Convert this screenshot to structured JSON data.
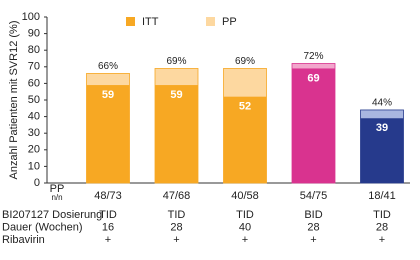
{
  "chart_data": {
    "type": "bar",
    "y_label": "Anzahl Patienten mit SVR12 (%)",
    "category_header": [
      "PP",
      "n/n"
    ],
    "categories": [
      "48/73",
      "47/68",
      "40/58",
      "54/75",
      "18/41"
    ],
    "series": [
      {
        "name": "ITT",
        "color": "#f7a823",
        "colors": [
          "#f7a823",
          "#f7a823",
          "#f7a823",
          "#d9338f",
          "#263a8c"
        ],
        "values": [
          59,
          59,
          52,
          69,
          39
        ]
      },
      {
        "name": "PP",
        "color": "#fdd8a0",
        "colors": [
          "#fdd8a0",
          "#fdd8a0",
          "#fdd8a0",
          "#f2a6cc",
          "#a9b6e0"
        ],
        "values": [
          66,
          69,
          69,
          72,
          44
        ],
        "value_labels": [
          "66%",
          "69%",
          "69%",
          "72%",
          "44%"
        ]
      }
    ],
    "ylim": [
      0,
      100
    ],
    "yticks": [
      0,
      10,
      20,
      30,
      40,
      50,
      60,
      70,
      80,
      90,
      100
    ],
    "table": {
      "row_labels": [
        "BI207127 Dosierung",
        "Dauer (Wochen)",
        "Ribavirin"
      ],
      "rows": [
        [
          "TID",
          "TID",
          "TID",
          "BID",
          "TID"
        ],
        [
          "16",
          "28",
          "40",
          "28",
          "28"
        ],
        [
          "+",
          "+",
          "+",
          "+",
          "+"
        ]
      ]
    }
  }
}
